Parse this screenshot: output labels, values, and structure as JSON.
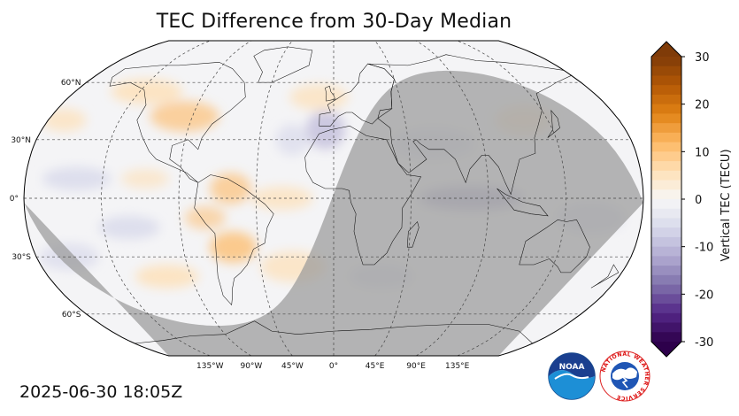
{
  "title": "TEC Difference from 30-Day Median",
  "timestamp": "2025-06-30 18:05Z",
  "latitude_labels": [
    "60°N",
    "30°N",
    "0°",
    "30°S",
    "60°S"
  ],
  "longitude_labels": [
    "135°W",
    "90°W",
    "45°W",
    "0°",
    "45°E",
    "90°E",
    "135°E"
  ],
  "colorbar": {
    "label": "Vertical TEC (TECU)",
    "min": -30,
    "max": 30,
    "ticks": [
      "30",
      "20",
      "10",
      "0",
      "-10",
      "-20",
      "-30"
    ],
    "colors_top_to_bottom": [
      "#7f3b08",
      "#b35806",
      "#e08214",
      "#fdb863",
      "#fee0b6",
      "#f7f7f7",
      "#d8daeb",
      "#b2abd2",
      "#8073ac",
      "#542788",
      "#2d004b"
    ]
  },
  "map": {
    "projection": "robinson",
    "night_shading_color": "#9a9a9a",
    "land_outline_color": "#000000"
  },
  "logos": {
    "noaa_text": "NOAA",
    "nws_text": "NATIONAL WEATHER SERVICE"
  }
}
